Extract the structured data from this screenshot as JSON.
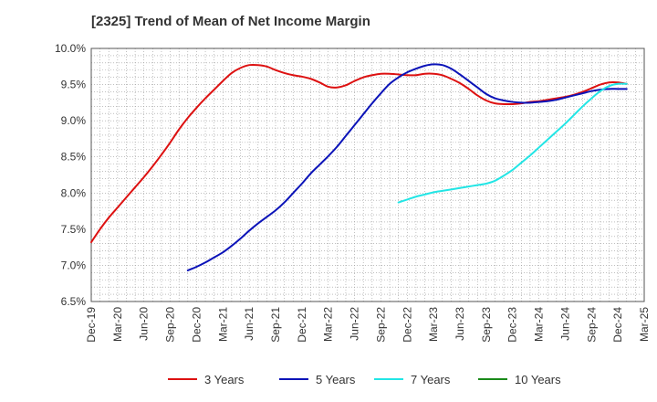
{
  "chart_data": {
    "type": "line",
    "title": "[2325]  Trend of Mean of Net Income Margin",
    "xlabel": "",
    "ylabel": "",
    "ylim": [
      6.5,
      10.0
    ],
    "y_ticks": [
      "10.0%",
      "9.5%",
      "9.0%",
      "8.5%",
      "8.0%",
      "7.5%",
      "7.0%",
      "6.5%"
    ],
    "x_tick_labels": [
      "Dec-19",
      "Mar-20",
      "Jun-20",
      "Sep-20",
      "Dec-20",
      "Mar-21",
      "Jun-21",
      "Sep-21",
      "Dec-21",
      "Mar-22",
      "Jun-22",
      "Sep-22",
      "Dec-22",
      "Mar-23",
      "Jun-23",
      "Sep-23",
      "Dec-23",
      "Mar-24",
      "Jun-24",
      "Sep-24",
      "Dec-24",
      "Mar-25"
    ],
    "grid": true,
    "legend_position": "bottom",
    "series": [
      {
        "name": "3 Years",
        "color": "#dd1111",
        "points": [
          [
            "Dec-19",
            7.32
          ],
          [
            "Jan-20",
            7.5
          ],
          [
            "Feb-20",
            7.66
          ],
          [
            "Mar-20",
            7.8
          ],
          [
            "Apr-20",
            7.94
          ],
          [
            "May-20",
            8.08
          ],
          [
            "Jun-20",
            8.22
          ],
          [
            "Jul-20",
            8.37
          ],
          [
            "Aug-20",
            8.53
          ],
          [
            "Sep-20",
            8.7
          ],
          [
            "Oct-20",
            8.88
          ],
          [
            "Nov-20",
            9.04
          ],
          [
            "Dec-20",
            9.18
          ],
          [
            "Jan-21",
            9.31
          ],
          [
            "Feb-21",
            9.43
          ],
          [
            "Mar-21",
            9.55
          ],
          [
            "Apr-21",
            9.66
          ],
          [
            "May-21",
            9.73
          ],
          [
            "Jun-21",
            9.77
          ],
          [
            "Jul-21",
            9.77
          ],
          [
            "Aug-21",
            9.75
          ],
          [
            "Sep-21",
            9.7
          ],
          [
            "Oct-21",
            9.66
          ],
          [
            "Nov-21",
            9.63
          ],
          [
            "Dec-21",
            9.61
          ],
          [
            "Jan-22",
            9.58
          ],
          [
            "Feb-22",
            9.53
          ],
          [
            "Mar-22",
            9.47
          ],
          [
            "Apr-22",
            9.46
          ],
          [
            "May-22",
            9.49
          ],
          [
            "Jun-22",
            9.55
          ],
          [
            "Jul-22",
            9.6
          ],
          [
            "Aug-22",
            9.63
          ],
          [
            "Sep-22",
            9.65
          ],
          [
            "Oct-22",
            9.65
          ],
          [
            "Nov-22",
            9.64
          ],
          [
            "Dec-22",
            9.63
          ],
          [
            "Jan-23",
            9.63
          ],
          [
            "Feb-23",
            9.65
          ],
          [
            "Mar-23",
            9.65
          ],
          [
            "Apr-23",
            9.63
          ],
          [
            "May-23",
            9.58
          ],
          [
            "Jun-23",
            9.52
          ],
          [
            "Jul-23",
            9.44
          ],
          [
            "Aug-23",
            9.35
          ],
          [
            "Sep-23",
            9.28
          ],
          [
            "Oct-23",
            9.24
          ],
          [
            "Nov-23",
            9.23
          ],
          [
            "Dec-23",
            9.23
          ],
          [
            "Jan-24",
            9.24
          ],
          [
            "Feb-24",
            9.26
          ],
          [
            "Mar-24",
            9.27
          ],
          [
            "Apr-24",
            9.29
          ],
          [
            "May-24",
            9.31
          ],
          [
            "Jun-24",
            9.33
          ],
          [
            "Jul-24",
            9.36
          ],
          [
            "Aug-24",
            9.4
          ],
          [
            "Sep-24",
            9.45
          ],
          [
            "Oct-24",
            9.5
          ],
          [
            "Nov-24",
            9.53
          ],
          [
            "Dec-24",
            9.53
          ],
          [
            "Jan-25",
            9.51
          ]
        ]
      },
      {
        "name": "5 Years",
        "color": "#0b13b8",
        "points": [
          [
            "Nov-20",
            6.93
          ],
          [
            "Dec-20",
            6.98
          ],
          [
            "Jan-21",
            7.04
          ],
          [
            "Feb-21",
            7.11
          ],
          [
            "Mar-21",
            7.18
          ],
          [
            "Apr-21",
            7.27
          ],
          [
            "May-21",
            7.37
          ],
          [
            "Jun-21",
            7.48
          ],
          [
            "Jul-21",
            7.58
          ],
          [
            "Aug-21",
            7.67
          ],
          [
            "Sep-21",
            7.76
          ],
          [
            "Oct-21",
            7.87
          ],
          [
            "Nov-21",
            8.0
          ],
          [
            "Dec-21",
            8.13
          ],
          [
            "Jan-22",
            8.27
          ],
          [
            "Feb-22",
            8.39
          ],
          [
            "Mar-22",
            8.51
          ],
          [
            "Apr-22",
            8.64
          ],
          [
            "May-22",
            8.79
          ],
          [
            "Jun-22",
            8.94
          ],
          [
            "Jul-22",
            9.09
          ],
          [
            "Aug-22",
            9.24
          ],
          [
            "Sep-22",
            9.38
          ],
          [
            "Oct-22",
            9.51
          ],
          [
            "Nov-22",
            9.6
          ],
          [
            "Dec-22",
            9.67
          ],
          [
            "Jan-23",
            9.72
          ],
          [
            "Feb-23",
            9.76
          ],
          [
            "Mar-23",
            9.78
          ],
          [
            "Apr-23",
            9.77
          ],
          [
            "May-23",
            9.72
          ],
          [
            "Jun-23",
            9.64
          ],
          [
            "Jul-23",
            9.55
          ],
          [
            "Aug-23",
            9.46
          ],
          [
            "Sep-23",
            9.37
          ],
          [
            "Oct-23",
            9.31
          ],
          [
            "Nov-23",
            9.28
          ],
          [
            "Dec-23",
            9.26
          ],
          [
            "Jan-24",
            9.25
          ],
          [
            "Feb-24",
            9.25
          ],
          [
            "Mar-24",
            9.26
          ],
          [
            "Apr-24",
            9.27
          ],
          [
            "May-24",
            9.29
          ],
          [
            "Jun-24",
            9.32
          ],
          [
            "Jul-24",
            9.35
          ],
          [
            "Aug-24",
            9.38
          ],
          [
            "Sep-24",
            9.41
          ],
          [
            "Oct-24",
            9.43
          ],
          [
            "Nov-24",
            9.44
          ],
          [
            "Dec-24",
            9.44
          ],
          [
            "Jan-25",
            9.44
          ]
        ]
      },
      {
        "name": "7 Years",
        "color": "#22e5e5",
        "points": [
          [
            "Nov-22",
            7.87
          ],
          [
            "Dec-22",
            7.91
          ],
          [
            "Jan-23",
            7.95
          ],
          [
            "Feb-23",
            7.98
          ],
          [
            "Mar-23",
            8.01
          ],
          [
            "Apr-23",
            8.03
          ],
          [
            "May-23",
            8.05
          ],
          [
            "Jun-23",
            8.07
          ],
          [
            "Jul-23",
            8.09
          ],
          [
            "Aug-23",
            8.11
          ],
          [
            "Sep-23",
            8.13
          ],
          [
            "Oct-23",
            8.17
          ],
          [
            "Nov-23",
            8.24
          ],
          [
            "Dec-23",
            8.32
          ],
          [
            "Jan-24",
            8.42
          ],
          [
            "Feb-24",
            8.52
          ],
          [
            "Mar-24",
            8.63
          ],
          [
            "Apr-24",
            8.74
          ],
          [
            "May-24",
            8.85
          ],
          [
            "Jun-24",
            8.96
          ],
          [
            "Jul-24",
            9.08
          ],
          [
            "Aug-24",
            9.2
          ],
          [
            "Sep-24",
            9.31
          ],
          [
            "Oct-24",
            9.41
          ],
          [
            "Nov-24",
            9.48
          ],
          [
            "Dec-24",
            9.51
          ],
          [
            "Jan-25",
            9.51
          ]
        ]
      },
      {
        "name": "10 Years",
        "color": "#1a8a1a",
        "points": []
      }
    ]
  }
}
